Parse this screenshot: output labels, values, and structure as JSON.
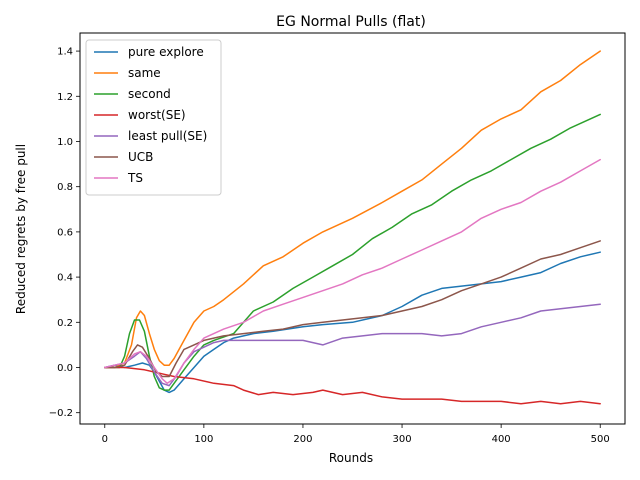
{
  "chart_data": {
    "type": "line",
    "title": "EG Normal Pulls (flat)",
    "xlabel": "Rounds",
    "ylabel": "Reduced regrets by free pull",
    "xlim": [
      -25,
      525
    ],
    "ylim": [
      -0.25,
      1.48
    ],
    "xticks": [
      0,
      100,
      200,
      300,
      400,
      500
    ],
    "yticks": [
      -0.2,
      0.0,
      0.2,
      0.4,
      0.6,
      0.8,
      1.0,
      1.2,
      1.4
    ],
    "xtick_labels": [
      "0",
      "100",
      "200",
      "300",
      "400",
      "500"
    ],
    "ytick_labels": [
      "−0.2",
      "0.0",
      "0.2",
      "0.4",
      "0.6",
      "0.8",
      "1.0",
      "1.2",
      "1.4"
    ],
    "grid": false,
    "legend_position": "top-left",
    "series": [
      {
        "name": "pure explore",
        "color": "#1f77b4",
        "points": [
          [
            0,
            0
          ],
          [
            10,
            0.01
          ],
          [
            20,
            0.0
          ],
          [
            30,
            0.01
          ],
          [
            38,
            0.02
          ],
          [
            45,
            0.01
          ],
          [
            50,
            -0.02
          ],
          [
            55,
            -0.06
          ],
          [
            60,
            -0.1
          ],
          [
            65,
            -0.11
          ],
          [
            70,
            -0.1
          ],
          [
            80,
            -0.05
          ],
          [
            90,
            0.0
          ],
          [
            100,
            0.05
          ],
          [
            110,
            0.08
          ],
          [
            120,
            0.11
          ],
          [
            130,
            0.13
          ],
          [
            150,
            0.15
          ],
          [
            170,
            0.16
          ],
          [
            200,
            0.18
          ],
          [
            220,
            0.19
          ],
          [
            250,
            0.2
          ],
          [
            280,
            0.23
          ],
          [
            300,
            0.27
          ],
          [
            320,
            0.32
          ],
          [
            340,
            0.35
          ],
          [
            360,
            0.36
          ],
          [
            380,
            0.37
          ],
          [
            400,
            0.38
          ],
          [
            420,
            0.4
          ],
          [
            440,
            0.42
          ],
          [
            460,
            0.46
          ],
          [
            480,
            0.49
          ],
          [
            500,
            0.51
          ]
        ]
      },
      {
        "name": "same",
        "color": "#ff7f0e",
        "points": [
          [
            0,
            0
          ],
          [
            10,
            0.0
          ],
          [
            20,
            0.02
          ],
          [
            27,
            0.1
          ],
          [
            32,
            0.22
          ],
          [
            36,
            0.25
          ],
          [
            40,
            0.23
          ],
          [
            45,
            0.15
          ],
          [
            50,
            0.08
          ],
          [
            55,
            0.03
          ],
          [
            60,
            0.01
          ],
          [
            65,
            0.01
          ],
          [
            70,
            0.04
          ],
          [
            80,
            0.12
          ],
          [
            90,
            0.2
          ],
          [
            100,
            0.25
          ],
          [
            110,
            0.27
          ],
          [
            120,
            0.3
          ],
          [
            140,
            0.37
          ],
          [
            160,
            0.45
          ],
          [
            180,
            0.49
          ],
          [
            200,
            0.55
          ],
          [
            220,
            0.6
          ],
          [
            250,
            0.66
          ],
          [
            280,
            0.73
          ],
          [
            300,
            0.78
          ],
          [
            320,
            0.83
          ],
          [
            340,
            0.9
          ],
          [
            360,
            0.97
          ],
          [
            380,
            1.05
          ],
          [
            400,
            1.1
          ],
          [
            420,
            1.14
          ],
          [
            440,
            1.22
          ],
          [
            460,
            1.27
          ],
          [
            480,
            1.34
          ],
          [
            500,
            1.4
          ]
        ]
      },
      {
        "name": "second",
        "color": "#2ca02c",
        "points": [
          [
            0,
            0
          ],
          [
            10,
            0.0
          ],
          [
            15,
            0.0
          ],
          [
            20,
            0.05
          ],
          [
            25,
            0.15
          ],
          [
            30,
            0.21
          ],
          [
            35,
            0.21
          ],
          [
            40,
            0.16
          ],
          [
            45,
            0.05
          ],
          [
            50,
            -0.04
          ],
          [
            55,
            -0.09
          ],
          [
            60,
            -0.1
          ],
          [
            65,
            -0.1
          ],
          [
            70,
            -0.07
          ],
          [
            80,
            -0.01
          ],
          [
            90,
            0.05
          ],
          [
            100,
            0.1
          ],
          [
            110,
            0.12
          ],
          [
            130,
            0.15
          ],
          [
            150,
            0.25
          ],
          [
            170,
            0.29
          ],
          [
            190,
            0.35
          ],
          [
            210,
            0.4
          ],
          [
            230,
            0.45
          ],
          [
            250,
            0.5
          ],
          [
            270,
            0.57
          ],
          [
            290,
            0.62
          ],
          [
            310,
            0.68
          ],
          [
            330,
            0.72
          ],
          [
            350,
            0.78
          ],
          [
            370,
            0.83
          ],
          [
            390,
            0.87
          ],
          [
            410,
            0.92
          ],
          [
            430,
            0.97
          ],
          [
            450,
            1.01
          ],
          [
            470,
            1.06
          ],
          [
            490,
            1.1
          ],
          [
            500,
            1.12
          ]
        ]
      },
      {
        "name": "worst(SE)",
        "color": "#d62728",
        "points": [
          [
            0,
            0
          ],
          [
            20,
            0.0
          ],
          [
            40,
            -0.01
          ],
          [
            50,
            -0.02
          ],
          [
            60,
            -0.03
          ],
          [
            70,
            -0.04
          ],
          [
            90,
            -0.05
          ],
          [
            110,
            -0.07
          ],
          [
            130,
            -0.08
          ],
          [
            140,
            -0.1
          ],
          [
            155,
            -0.12
          ],
          [
            170,
            -0.11
          ],
          [
            190,
            -0.12
          ],
          [
            210,
            -0.11
          ],
          [
            220,
            -0.1
          ],
          [
            240,
            -0.12
          ],
          [
            260,
            -0.11
          ],
          [
            280,
            -0.13
          ],
          [
            300,
            -0.14
          ],
          [
            320,
            -0.14
          ],
          [
            340,
            -0.14
          ],
          [
            360,
            -0.15
          ],
          [
            380,
            -0.15
          ],
          [
            400,
            -0.15
          ],
          [
            420,
            -0.16
          ],
          [
            440,
            -0.15
          ],
          [
            460,
            -0.16
          ],
          [
            480,
            -0.15
          ],
          [
            500,
            -0.16
          ]
        ]
      },
      {
        "name": "least pull(SE)",
        "color": "#9467bd",
        "points": [
          [
            0,
            0
          ],
          [
            10,
            0.01
          ],
          [
            20,
            0.02
          ],
          [
            30,
            0.05
          ],
          [
            36,
            0.07
          ],
          [
            42,
            0.04
          ],
          [
            50,
            -0.02
          ],
          [
            58,
            -0.07
          ],
          [
            65,
            -0.08
          ],
          [
            72,
            -0.04
          ],
          [
            80,
            0.02
          ],
          [
            90,
            0.07
          ],
          [
            100,
            0.09
          ],
          [
            110,
            0.11
          ],
          [
            120,
            0.12
          ],
          [
            140,
            0.12
          ],
          [
            160,
            0.12
          ],
          [
            180,
            0.12
          ],
          [
            200,
            0.12
          ],
          [
            220,
            0.1
          ],
          [
            240,
            0.13
          ],
          [
            260,
            0.14
          ],
          [
            280,
            0.15
          ],
          [
            300,
            0.15
          ],
          [
            320,
            0.15
          ],
          [
            340,
            0.14
          ],
          [
            360,
            0.15
          ],
          [
            380,
            0.18
          ],
          [
            400,
            0.2
          ],
          [
            420,
            0.22
          ],
          [
            440,
            0.25
          ],
          [
            460,
            0.26
          ],
          [
            480,
            0.27
          ],
          [
            500,
            0.28
          ]
        ]
      },
      {
        "name": "UCB",
        "color": "#8c564b",
        "points": [
          [
            0,
            0
          ],
          [
            10,
            0.0
          ],
          [
            20,
            0.01
          ],
          [
            28,
            0.07
          ],
          [
            33,
            0.1
          ],
          [
            38,
            0.09
          ],
          [
            45,
            0.04
          ],
          [
            52,
            -0.02
          ],
          [
            58,
            -0.04
          ],
          [
            65,
            -0.04
          ],
          [
            72,
            0.02
          ],
          [
            80,
            0.08
          ],
          [
            90,
            0.1
          ],
          [
            100,
            0.12
          ],
          [
            120,
            0.14
          ],
          [
            140,
            0.15
          ],
          [
            160,
            0.16
          ],
          [
            180,
            0.17
          ],
          [
            200,
            0.19
          ],
          [
            220,
            0.2
          ],
          [
            240,
            0.21
          ],
          [
            260,
            0.22
          ],
          [
            280,
            0.23
          ],
          [
            300,
            0.25
          ],
          [
            320,
            0.27
          ],
          [
            340,
            0.3
          ],
          [
            360,
            0.34
          ],
          [
            380,
            0.37
          ],
          [
            400,
            0.4
          ],
          [
            420,
            0.44
          ],
          [
            440,
            0.48
          ],
          [
            460,
            0.5
          ],
          [
            480,
            0.53
          ],
          [
            500,
            0.56
          ]
        ]
      },
      {
        "name": "TS",
        "color": "#e377c2",
        "points": [
          [
            0,
            0
          ],
          [
            10,
            0.01
          ],
          [
            20,
            0.02
          ],
          [
            30,
            0.06
          ],
          [
            36,
            0.07
          ],
          [
            42,
            0.05
          ],
          [
            50,
            0.0
          ],
          [
            58,
            -0.05
          ],
          [
            63,
            -0.07
          ],
          [
            70,
            -0.05
          ],
          [
            80,
            0.02
          ],
          [
            90,
            0.08
          ],
          [
            100,
            0.13
          ],
          [
            110,
            0.15
          ],
          [
            120,
            0.17
          ],
          [
            140,
            0.2
          ],
          [
            160,
            0.25
          ],
          [
            180,
            0.28
          ],
          [
            200,
            0.31
          ],
          [
            220,
            0.34
          ],
          [
            240,
            0.37
          ],
          [
            260,
            0.41
          ],
          [
            280,
            0.44
          ],
          [
            300,
            0.48
          ],
          [
            320,
            0.52
          ],
          [
            340,
            0.56
          ],
          [
            360,
            0.6
          ],
          [
            380,
            0.66
          ],
          [
            400,
            0.7
          ],
          [
            420,
            0.73
          ],
          [
            440,
            0.78
          ],
          [
            460,
            0.82
          ],
          [
            480,
            0.87
          ],
          [
            500,
            0.92
          ]
        ]
      }
    ]
  }
}
